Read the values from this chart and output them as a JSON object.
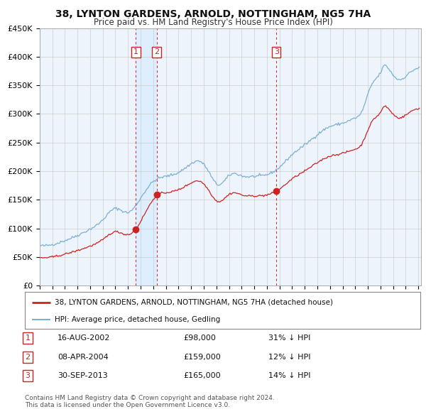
{
  "title": "38, LYNTON GARDENS, ARNOLD, NOTTINGHAM, NG5 7HA",
  "subtitle": "Price paid vs. HM Land Registry's House Price Index (HPI)",
  "ylim": [
    0,
    450000
  ],
  "yticks": [
    0,
    50000,
    100000,
    150000,
    200000,
    250000,
    300000,
    350000,
    400000,
    450000
  ],
  "ytick_labels": [
    "£0",
    "£50K",
    "£100K",
    "£150K",
    "£200K",
    "£250K",
    "£300K",
    "£350K",
    "£400K",
    "£450K"
  ],
  "xlim_start": 1995.0,
  "xlim_end": 2025.2,
  "legend_line1": "38, LYNTON GARDENS, ARNOLD, NOTTINGHAM, NG5 7HA (detached house)",
  "legend_line2": "HPI: Average price, detached house, Gedling",
  "red_color": "#cc2222",
  "blue_color": "#7ab0d4",
  "shade_color": "#ddeeff",
  "transaction_color": "#cc2222",
  "dot_color": "#cc2222",
  "transactions": [
    {
      "id": 1,
      "date": "16-AUG-2002",
      "price": 98000,
      "note": "31% ↓ HPI",
      "x": 2002.62
    },
    {
      "id": 2,
      "date": "08-APR-2004",
      "price": 159000,
      "note": "12% ↓ HPI",
      "x": 2004.27
    },
    {
      "id": 3,
      "date": "30-SEP-2013",
      "price": 165000,
      "note": "14% ↓ HPI",
      "x": 2013.75
    }
  ],
  "footer": "Contains HM Land Registry data © Crown copyright and database right 2024.\nThis data is licensed under the Open Government Licence v3.0.",
  "bg_color": "#ffffff",
  "plot_bg": "#eef4fb",
  "grid_color": "#cccccc"
}
